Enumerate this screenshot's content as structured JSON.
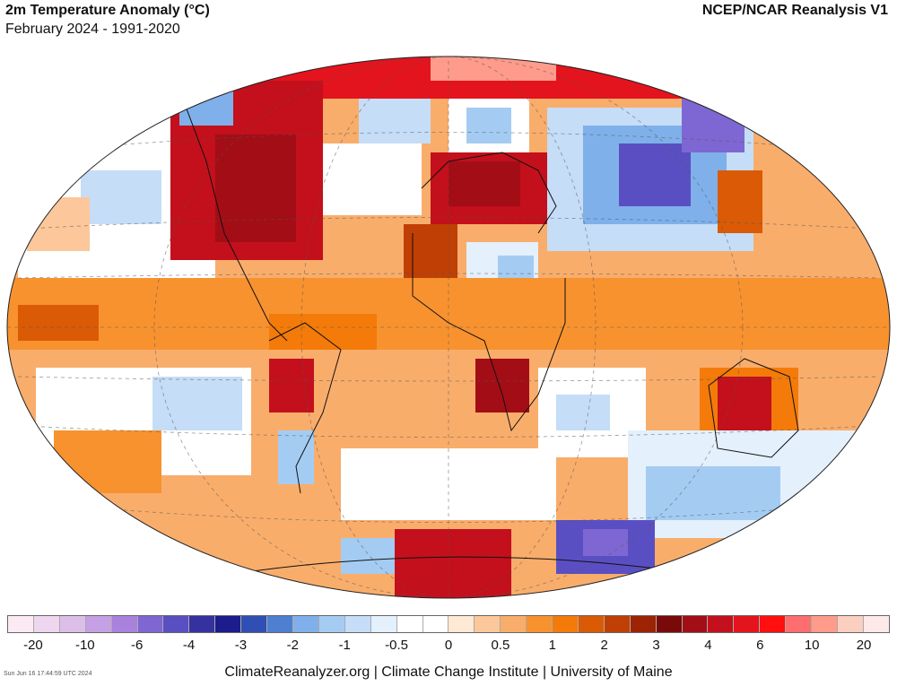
{
  "header": {
    "title": "2m Temperature Anomaly (°C)",
    "subtitle": "February 2024 - 1991-2020",
    "source": "NCEP/NCAR Reanalysis V1"
  },
  "legend": {
    "colors": [
      "#fbeaf3",
      "#eed6ee",
      "#dcbfe8",
      "#c6a0e4",
      "#a882dc",
      "#7e67d2",
      "#5a4fc2",
      "#35329f",
      "#1c1c8c",
      "#2f4fb5",
      "#4f7fd0",
      "#7fb0ea",
      "#a4ccf3",
      "#c5ddf7",
      "#e4f0fc",
      "#ffffff",
      "#ffffff",
      "#fde9d4",
      "#fcc79a",
      "#f9ad6b",
      "#f7922f",
      "#f47b09",
      "#da5a05",
      "#bf3f04",
      "#9c2303",
      "#7a0a0a",
      "#a30d16",
      "#c3101c",
      "#e3141d",
      "#ff0f0f",
      "#ff6e6e",
      "#ff9b8b",
      "#fbcfc0",
      "#fde9ea"
    ],
    "tick_labels": [
      "-20",
      "-10",
      "-6",
      "-4",
      "-3",
      "-2",
      "-1",
      "-0.5",
      "0",
      "0.5",
      "1",
      "2",
      "3",
      "4",
      "6",
      "10",
      "20"
    ]
  },
  "map": {
    "projection": "Winkel Tripel",
    "variable": "2m Temperature Anomaly",
    "units": "°C"
  },
  "footer": {
    "timestamp": "Sun Jun 16 17:44:59 UTC 2024",
    "credits": "ClimateReanalyzer.org | Climate Change Institute | University of Maine"
  }
}
